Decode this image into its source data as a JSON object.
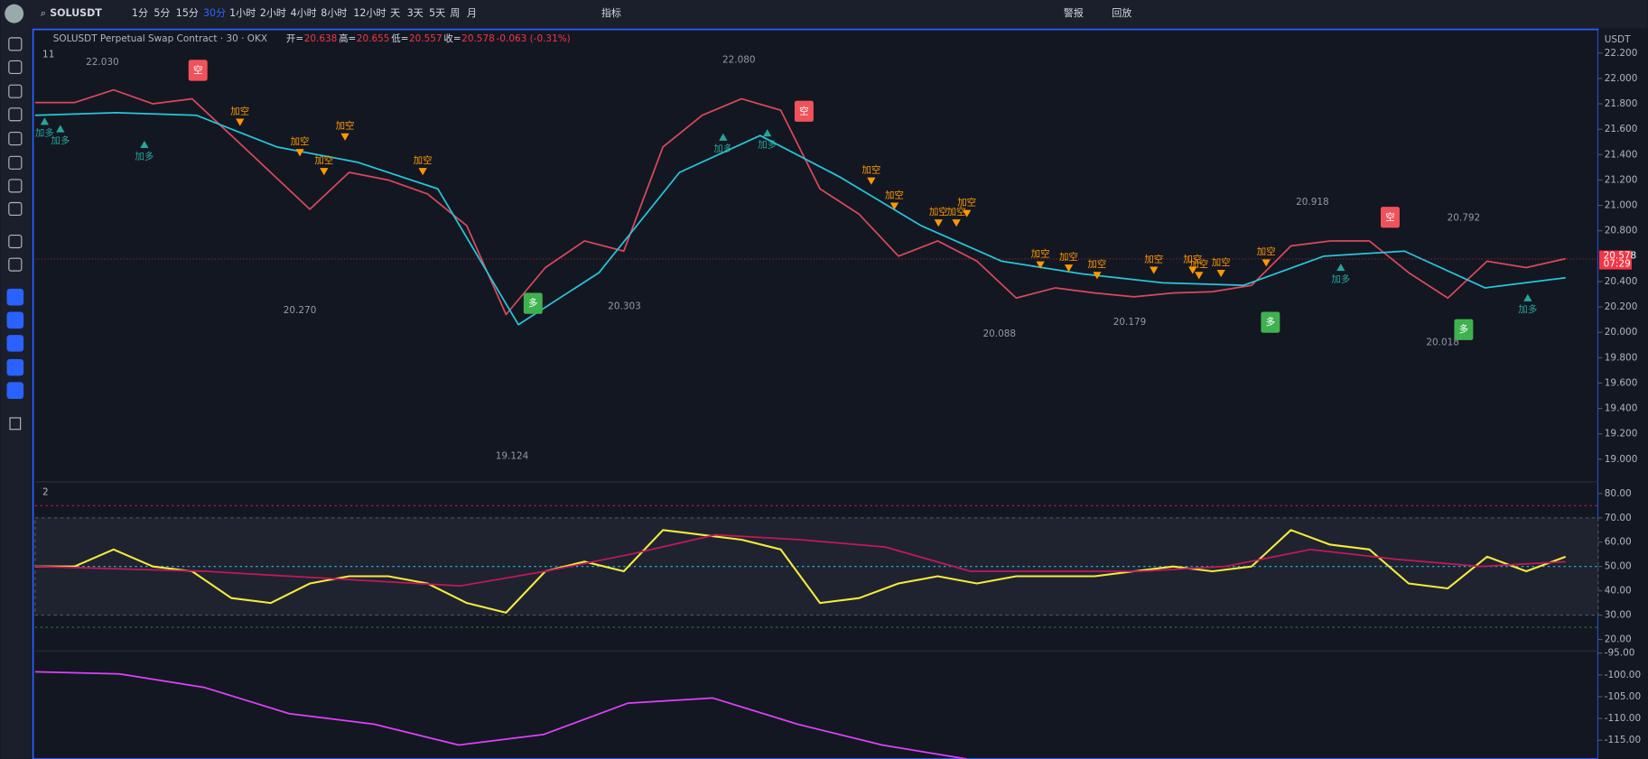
{
  "toolbar": {
    "symbol": "SOLUSDT",
    "intervals": [
      "1分",
      "5分",
      "15分",
      "30分",
      "1小时",
      "2小时",
      "4小时",
      "8小时",
      "12小时",
      "天",
      "3天",
      "5天",
      "周",
      "月"
    ],
    "active_interval": 3,
    "indicators": "指标",
    "alert": "警报",
    "replay": "回放"
  },
  "header": {
    "title": "SOLUSDT Perpetual Swap Contract · 30 · OKX",
    "ohlc": [
      {
        "label": "开=",
        "value": 20.638
      },
      {
        "label": "高=",
        "value": 20.655
      },
      {
        "label": "低=",
        "value": 20.557
      },
      {
        "label": "收=",
        "value": 20.578
      }
    ],
    "change": "-0.063 (-0.31%)",
    "currency": "USDT",
    "price_panel": "11",
    "rsi_panel": "2"
  },
  "markers": {
    "short": "加空",
    "long": "加多",
    "sell": "空",
    "buy": "多"
  },
  "chart_data": [
    {
      "type": "line",
      "ylim": [
        18.83,
        22.37
      ],
      "yticks": [
        {
          "value": 22.2,
          "label": "22.200"
        },
        {
          "value": 22,
          "label": "22.000"
        },
        {
          "value": 21.8,
          "label": "21.800"
        },
        {
          "value": 21.6,
          "label": "21.600"
        },
        {
          "value": 21.4,
          "label": "21.400"
        },
        {
          "value": 21.2,
          "label": "21.200"
        },
        {
          "value": 21,
          "label": "21.000"
        },
        {
          "value": 20.8,
          "label": "20.800"
        },
        {
          "value": 20.4,
          "label": "20.400"
        },
        {
          "value": 20.2,
          "label": "20.200"
        },
        {
          "value": 20,
          "label": "20.000"
        },
        {
          "value": 19.8,
          "label": "19.800"
        },
        {
          "value": 19.6,
          "label": "19.600"
        },
        {
          "value": 19.4,
          "label": "19.400"
        },
        {
          "value": 19.2,
          "label": "19.200"
        },
        {
          "value": 19,
          "label": "19.000"
        }
      ],
      "series": [
        {
          "color": "#d9485b",
          "values": [
            21.81,
            21.81,
            21.91,
            21.8,
            21.84,
            21.55,
            21.26,
            20.97,
            21.26,
            21.2,
            21.09,
            20.84,
            20.14,
            20.51,
            20.72,
            20.64,
            21.46,
            21.71,
            21.84,
            21.75,
            21.13,
            20.93,
            20.6,
            20.72,
            20.56,
            20.27,
            20.35,
            20.31,
            20.28,
            20.31,
            20.32,
            20.37,
            20.68,
            20.72,
            20.72,
            20.47,
            20.27,
            20.56,
            20.51,
            20.58
          ]
        },
        {
          "color": "#26c6da",
          "values": [
            21.71,
            21.73,
            21.71,
            21.46,
            21.34,
            21.13,
            20.06,
            20.47,
            21.26,
            21.55,
            21.22,
            20.84,
            20.56,
            20.46,
            20.39,
            20.37,
            20.6,
            20.64,
            20.35,
            20.43
          ]
        }
      ],
      "annotations": [
        {
          "value": 22.03,
          "label": "22.030"
        },
        {
          "value": 22.08,
          "label": "22.080"
        },
        {
          "value": 20.27,
          "label": "20.270"
        },
        {
          "value": 19.124,
          "label": "19.124"
        },
        {
          "value": 20.303,
          "label": "20.303"
        },
        {
          "value": 20.088,
          "label": "20.088"
        },
        {
          "value": 20.179,
          "label": "20.179"
        },
        {
          "value": 20.918,
          "label": "20.918"
        },
        {
          "value": 20.792,
          "label": "20.792"
        },
        {
          "value": 20.018,
          "label": "20.018"
        }
      ],
      "last_price": {
        "value": 20.578,
        "label": "20.578",
        "countdown": "07:29"
      }
    },
    {
      "type": "line",
      "ylim": [
        15.3,
        83.5
      ],
      "yticks": [
        {
          "value": 80,
          "label": "80.00"
        },
        {
          "value": 70,
          "label": "70.00"
        },
        {
          "value": 60,
          "label": "60.00"
        },
        {
          "value": 50,
          "label": "50.00"
        },
        {
          "value": 40,
          "label": "40.00"
        },
        {
          "value": 30,
          "label": "30.00"
        },
        {
          "value": 20,
          "label": "20.00"
        }
      ],
      "bands": [
        70,
        30
      ],
      "levels": [
        {
          "value": 75,
          "color": "#c2185b"
        },
        {
          "value": 50,
          "color": "#26c6da"
        },
        {
          "value": 25,
          "color": "#2e7d32"
        }
      ],
      "series": [
        {
          "color": "#f5ea3c",
          "values": [
            50,
            50,
            57,
            50,
            48,
            37,
            35,
            43,
            46,
            46,
            43,
            35,
            31,
            48,
            52,
            48,
            65,
            63,
            61,
            57,
            35,
            37,
            43,
            46,
            43,
            46,
            46,
            46,
            48,
            50,
            48,
            50,
            65,
            59,
            57,
            43,
            41,
            54,
            48,
            54
          ]
        },
        {
          "color": "#c2185b",
          "values": [
            50,
            49,
            48,
            46,
            44,
            42,
            48,
            55,
            63,
            61,
            58,
            48,
            48,
            48,
            50,
            57,
            53,
            50,
            52
          ]
        }
      ]
    },
    {
      "type": "line",
      "ylim": [
        -119.3,
        -94.5
      ],
      "yticks": [
        {
          "value": -95,
          "label": "-95.00"
        },
        {
          "value": -100,
          "label": "-100.00"
        },
        {
          "value": -105,
          "label": "-105.00"
        },
        {
          "value": -110,
          "label": "-110.00"
        },
        {
          "value": -115,
          "label": "-115.00"
        }
      ],
      "series": [
        {
          "color": "#e040fb",
          "values": [
            -99.3,
            -99.8,
            -102.9,
            -108.9,
            -111.3,
            -116.1,
            -113.7,
            -106.5,
            -105.3,
            -111.3,
            -116.1,
            -119.3
          ]
        }
      ]
    }
  ]
}
